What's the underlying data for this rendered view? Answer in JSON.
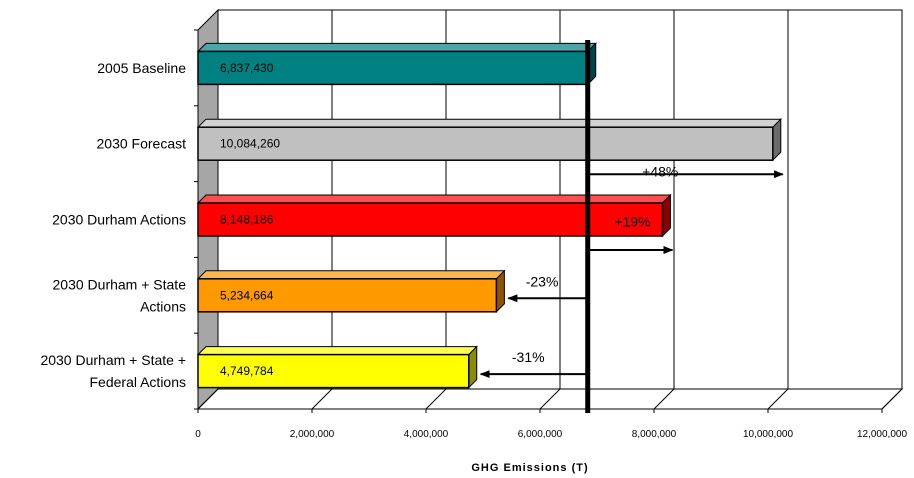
{
  "chart_data": {
    "type": "bar",
    "orientation": "horizontal",
    "style": "3d",
    "categories": [
      [
        "2005 Baseline"
      ],
      [
        "2030 Forecast"
      ],
      [
        "2030 Durham Actions"
      ],
      [
        "2030 Durham + State",
        "Actions"
      ],
      [
        "2030 Durham + State +",
        "Federal Actions"
      ]
    ],
    "values": [
      6837430,
      10084260,
      8148186,
      5234664,
      4749784
    ],
    "value_labels": [
      "6,837,430",
      "10,084,260",
      "8,148,186",
      "5,234,664",
      "4,749,784"
    ],
    "bar_colors": [
      "#008080",
      "#c0c0c0",
      "#ff0000",
      "#ff9900",
      "#ffff00"
    ],
    "changes": [
      "",
      "+48%",
      "+19%",
      "-23%",
      "-31%"
    ],
    "baseline_value": 6837430,
    "xlabel": "GHG Emissions (T)",
    "xlim": [
      0,
      12000000
    ],
    "xticks": [
      0,
      2000000,
      4000000,
      6000000,
      8000000,
      10000000,
      12000000
    ],
    "xtick_labels": [
      "0",
      "2,000,000",
      "4,000,000",
      "6,000,000",
      "8,000,000",
      "10,000,000",
      "12,000,000"
    ],
    "grid": true,
    "legend": "none"
  }
}
